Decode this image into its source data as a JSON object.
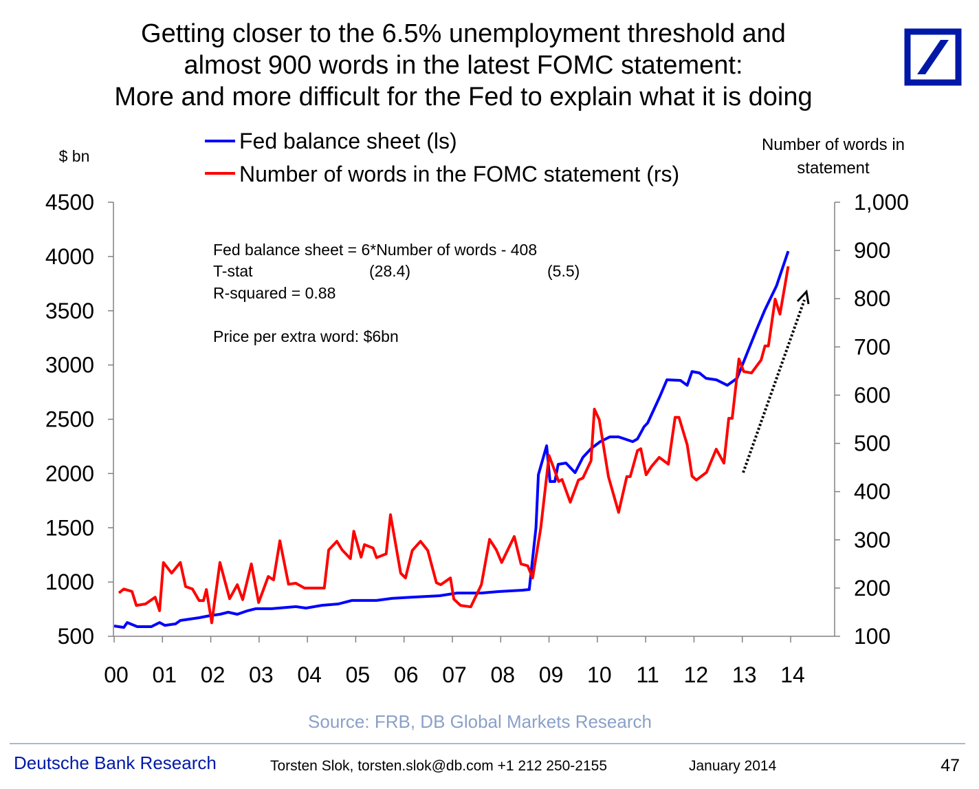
{
  "title_lines": [
    "Getting closer to the 6.5% unemployment threshold and",
    "almost 900 words in the latest FOMC statement:",
    "More and more difficult for the Fed to explain what it is doing"
  ],
  "annotation": {
    "equation": "Fed balance sheet = 6*Number of words - 408",
    "tstat_label": "T-stat",
    "tstat_1": "(28.4)",
    "tstat_2": "(5.5)",
    "rsquared": "R-squared = 0.88",
    "price": "Price per extra word: $6bn"
  },
  "source": "Source: FRB, DB Global Markets Research",
  "footer": {
    "brand": "Deutsche Bank Research",
    "author": "Torsten Slok, torsten.slok@db.com  +1 212 250-2155",
    "date": "January 2014",
    "page": "47"
  },
  "colors": {
    "blue_series": "#0000ff",
    "red_series": "#ff0000",
    "brand": "#0018a8",
    "source_text": "#8aa0c8"
  },
  "chart_data": {
    "type": "line",
    "title": "Getting closer to the 6.5% unemployment threshold and almost 900 words in the latest FOMC statement: More and more difficult for the Fed to explain what it is doing",
    "ylabel_left": "$ bn",
    "ylabel_right": "Number of words in statement",
    "ylim_left": [
      500,
      4500
    ],
    "ylim_right": [
      100,
      1000
    ],
    "xlim": [
      2000,
      2014
    ],
    "x_tick_labels": [
      "00",
      "01",
      "02",
      "03",
      "04",
      "05",
      "06",
      "07",
      "08",
      "09",
      "10",
      "11",
      "12",
      "13",
      "14"
    ],
    "y_left_ticks": [
      "500",
      "1000",
      "1500",
      "2000",
      "2500",
      "3000",
      "3500",
      "4000",
      "4500"
    ],
    "y_right_ticks": [
      "100",
      "200",
      "300",
      "400",
      "500",
      "600",
      "700",
      "800",
      "900",
      "1,000"
    ],
    "legend_placement": "top",
    "grid": false,
    "series": [
      {
        "name": "Fed balance sheet (ls)",
        "axis": "left",
        "color": "#0000ff",
        "points": [
          [
            2000.0,
            595
          ],
          [
            2000.2,
            582
          ],
          [
            2000.27,
            627
          ],
          [
            2000.48,
            589
          ],
          [
            2000.77,
            589
          ],
          [
            2000.94,
            627
          ],
          [
            2001.05,
            601
          ],
          [
            2001.27,
            614
          ],
          [
            2001.37,
            646
          ],
          [
            2001.76,
            671
          ],
          [
            2001.98,
            690
          ],
          [
            2002.19,
            703
          ],
          [
            2002.36,
            722
          ],
          [
            2002.55,
            703
          ],
          [
            2002.76,
            735
          ],
          [
            2002.93,
            754
          ],
          [
            2003.26,
            754
          ],
          [
            2003.76,
            773
          ],
          [
            2003.97,
            760
          ],
          [
            2004.3,
            785
          ],
          [
            2004.64,
            798
          ],
          [
            2004.92,
            830
          ],
          [
            2005.43,
            830
          ],
          [
            2005.75,
            849
          ],
          [
            2006.17,
            861
          ],
          [
            2006.74,
            874
          ],
          [
            2007.1,
            899
          ],
          [
            2007.6,
            899
          ],
          [
            2007.95,
            912
          ],
          [
            2008.45,
            925
          ],
          [
            2008.59,
            931
          ],
          [
            2008.73,
            1501
          ],
          [
            2008.78,
            1989
          ],
          [
            2008.95,
            2256
          ],
          [
            2009.02,
            1926
          ],
          [
            2009.12,
            1926
          ],
          [
            2009.19,
            2085
          ],
          [
            2009.35,
            2097
          ],
          [
            2009.54,
            2008
          ],
          [
            2009.7,
            2148
          ],
          [
            2009.87,
            2230
          ],
          [
            2010.06,
            2294
          ],
          [
            2010.26,
            2338
          ],
          [
            2010.44,
            2338
          ],
          [
            2010.73,
            2294
          ],
          [
            2010.83,
            2319
          ],
          [
            2010.97,
            2433
          ],
          [
            2011.04,
            2465
          ],
          [
            2011.29,
            2706
          ],
          [
            2011.44,
            2864
          ],
          [
            2011.72,
            2858
          ],
          [
            2011.86,
            2813
          ],
          [
            2011.96,
            2940
          ],
          [
            2012.11,
            2927
          ],
          [
            2012.25,
            2877
          ],
          [
            2012.46,
            2864
          ],
          [
            2012.69,
            2813
          ],
          [
            2012.89,
            2877
          ],
          [
            2013.29,
            3320
          ],
          [
            2013.47,
            3510
          ],
          [
            2013.71,
            3732
          ],
          [
            2013.95,
            4049
          ]
        ]
      },
      {
        "name": "Number of words in the FOMC statement (rs)",
        "axis": "right",
        "color": "#ff0000",
        "points": [
          [
            2000.1,
            190
          ],
          [
            2000.2,
            198
          ],
          [
            2000.37,
            193
          ],
          [
            2000.46,
            164
          ],
          [
            2000.65,
            167
          ],
          [
            2000.85,
            181
          ],
          [
            2000.94,
            153
          ],
          [
            2001.02,
            253
          ],
          [
            2001.19,
            231
          ],
          [
            2001.37,
            253
          ],
          [
            2001.48,
            203
          ],
          [
            2001.62,
            198
          ],
          [
            2001.76,
            174
          ],
          [
            2001.85,
            174
          ],
          [
            2001.91,
            197
          ],
          [
            2002.02,
            128
          ],
          [
            2002.19,
            253
          ],
          [
            2002.39,
            178
          ],
          [
            2002.55,
            207
          ],
          [
            2002.66,
            176
          ],
          [
            2002.84,
            250
          ],
          [
            2002.99,
            170
          ],
          [
            2003.19,
            224
          ],
          [
            2003.3,
            217
          ],
          [
            2003.43,
            298
          ],
          [
            2003.61,
            208
          ],
          [
            2003.76,
            210
          ],
          [
            2003.94,
            200
          ],
          [
            2004.35,
            200
          ],
          [
            2004.44,
            279
          ],
          [
            2004.61,
            297
          ],
          [
            2004.72,
            279
          ],
          [
            2004.89,
            261
          ],
          [
            2004.96,
            318
          ],
          [
            2005.11,
            264
          ],
          [
            2005.18,
            290
          ],
          [
            2005.36,
            283
          ],
          [
            2005.43,
            263
          ],
          [
            2005.63,
            271
          ],
          [
            2005.72,
            352
          ],
          [
            2005.93,
            231
          ],
          [
            2006.03,
            221
          ],
          [
            2006.17,
            278
          ],
          [
            2006.34,
            297
          ],
          [
            2006.49,
            278
          ],
          [
            2006.67,
            211
          ],
          [
            2006.76,
            207
          ],
          [
            2006.96,
            221
          ],
          [
            2007.03,
            177
          ],
          [
            2007.17,
            164
          ],
          [
            2007.38,
            161
          ],
          [
            2007.6,
            207
          ],
          [
            2007.77,
            301
          ],
          [
            2007.91,
            279
          ],
          [
            2008.02,
            253
          ],
          [
            2008.28,
            307
          ],
          [
            2008.42,
            250
          ],
          [
            2008.56,
            246
          ],
          [
            2008.66,
            221
          ],
          [
            2008.83,
            325
          ],
          [
            2009.0,
            475
          ],
          [
            2009.2,
            421
          ],
          [
            2009.27,
            425
          ],
          [
            2009.44,
            378
          ],
          [
            2009.61,
            424
          ],
          [
            2009.7,
            428
          ],
          [
            2009.87,
            464
          ],
          [
            2009.94,
            571
          ],
          [
            2010.04,
            549
          ],
          [
            2010.23,
            431
          ],
          [
            2010.44,
            357
          ],
          [
            2010.61,
            431
          ],
          [
            2010.68,
            431
          ],
          [
            2010.83,
            485
          ],
          [
            2010.9,
            489
          ],
          [
            2011.01,
            435
          ],
          [
            2011.12,
            452
          ],
          [
            2011.28,
            471
          ],
          [
            2011.47,
            457
          ],
          [
            2011.61,
            554
          ],
          [
            2011.69,
            554
          ],
          [
            2011.86,
            497
          ],
          [
            2011.96,
            432
          ],
          [
            2012.05,
            424
          ],
          [
            2012.26,
            440
          ],
          [
            2012.46,
            488
          ],
          [
            2012.62,
            459
          ],
          [
            2012.72,
            552
          ],
          [
            2012.79,
            552
          ],
          [
            2012.93,
            675
          ],
          [
            2013.03,
            649
          ],
          [
            2013.19,
            646
          ],
          [
            2013.39,
            673
          ],
          [
            2013.47,
            702
          ],
          [
            2013.54,
            702
          ],
          [
            2013.68,
            799
          ],
          [
            2013.78,
            768
          ],
          [
            2013.95,
            867
          ]
        ]
      }
    ]
  }
}
